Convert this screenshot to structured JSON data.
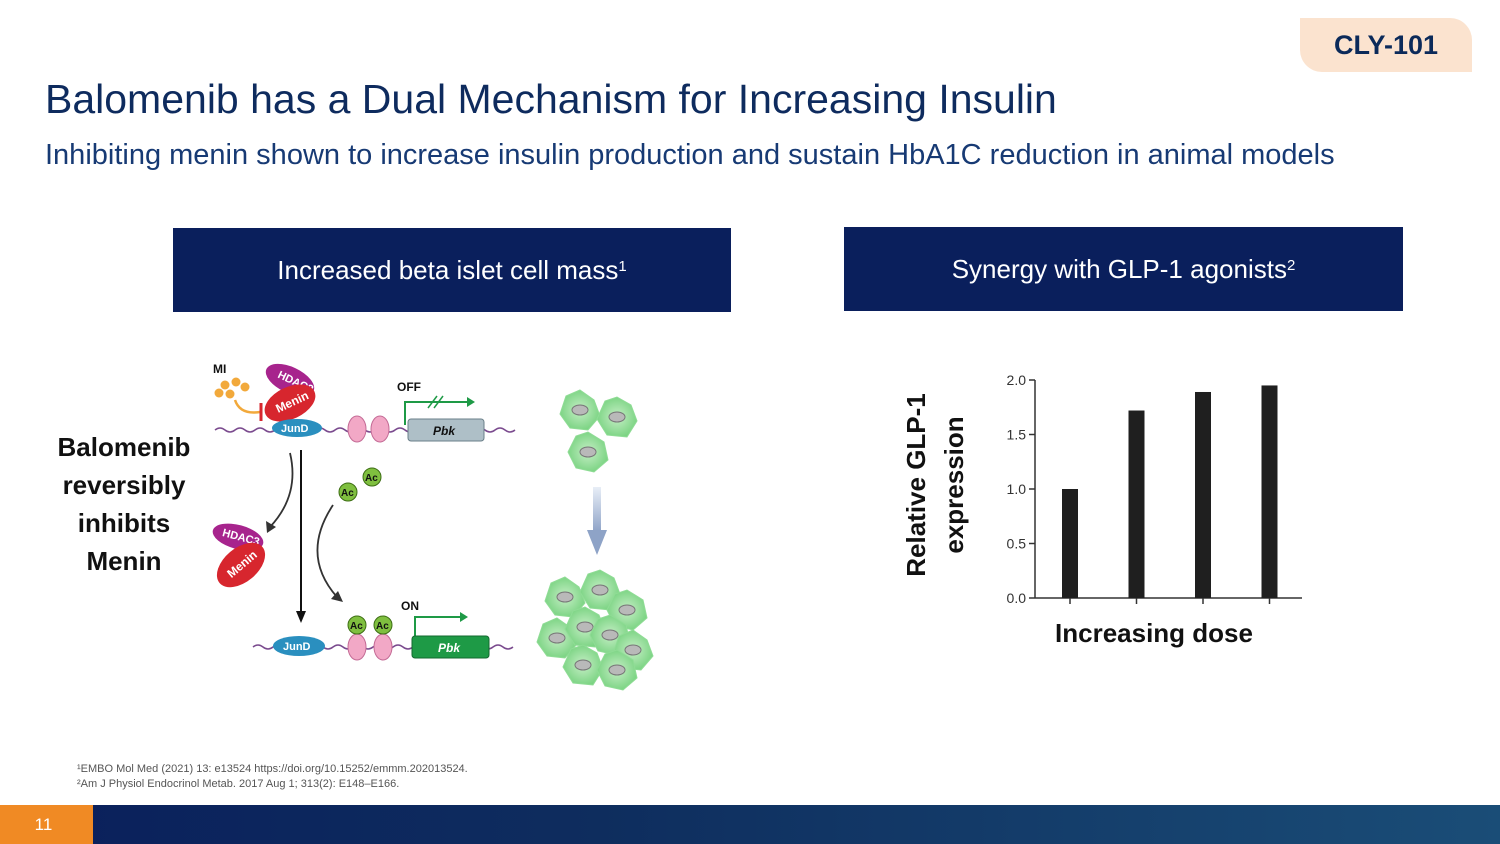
{
  "badge": "CLY-101",
  "title": "Balomenib has a Dual Mechanism for Increasing Insulin",
  "subtitle": "Inhibiting menin shown to increase insulin production and sustain HbA1C reduction in animal models",
  "left_box": {
    "label": "Increased beta islet cell mass",
    "sup": "1"
  },
  "right_box": {
    "label": "Synergy with GLP-1 agonists",
    "sup": "2"
  },
  "left_text": [
    "Balomenib",
    "reversibly",
    "inhibits",
    "Menin"
  ],
  "diagram": {
    "mi": "MI",
    "off": "OFF",
    "on": "ON",
    "hdac3": "HDAC3",
    "menin": "Menin",
    "jund": "JunD",
    "pbk": "Pbk",
    "ac": "Ac"
  },
  "chart_data": {
    "type": "bar",
    "categories": [
      "",
      "",
      "",
      ""
    ],
    "values": [
      1.0,
      1.72,
      1.89,
      1.95
    ],
    "ylim": [
      0,
      2.0
    ],
    "yticks": [
      "0.0",
      "0.5",
      "1.0",
      "1.5",
      "2.0"
    ],
    "ylabel_line1": "Relative GLP-1",
    "ylabel_line2": "expression",
    "xlabel": "Increasing dose",
    "bar_color": "#1f1f1f"
  },
  "references": [
    "¹EMBO Mol Med (2021) 13: e13524 https://doi.org/10.15252/emmm.202013524.",
    "²Am J Physiol Endocrinol Metab. 2017 Aug 1; 313(2): E148–E166."
  ],
  "page_number": "11",
  "colors": {
    "navy": "#0a1f5c",
    "orange": "#f08a24",
    "badge_bg": "#fbe3cf",
    "green": "#1e9a46",
    "menin_red": "#d7262e",
    "hdac_purple": "#a7248d"
  }
}
